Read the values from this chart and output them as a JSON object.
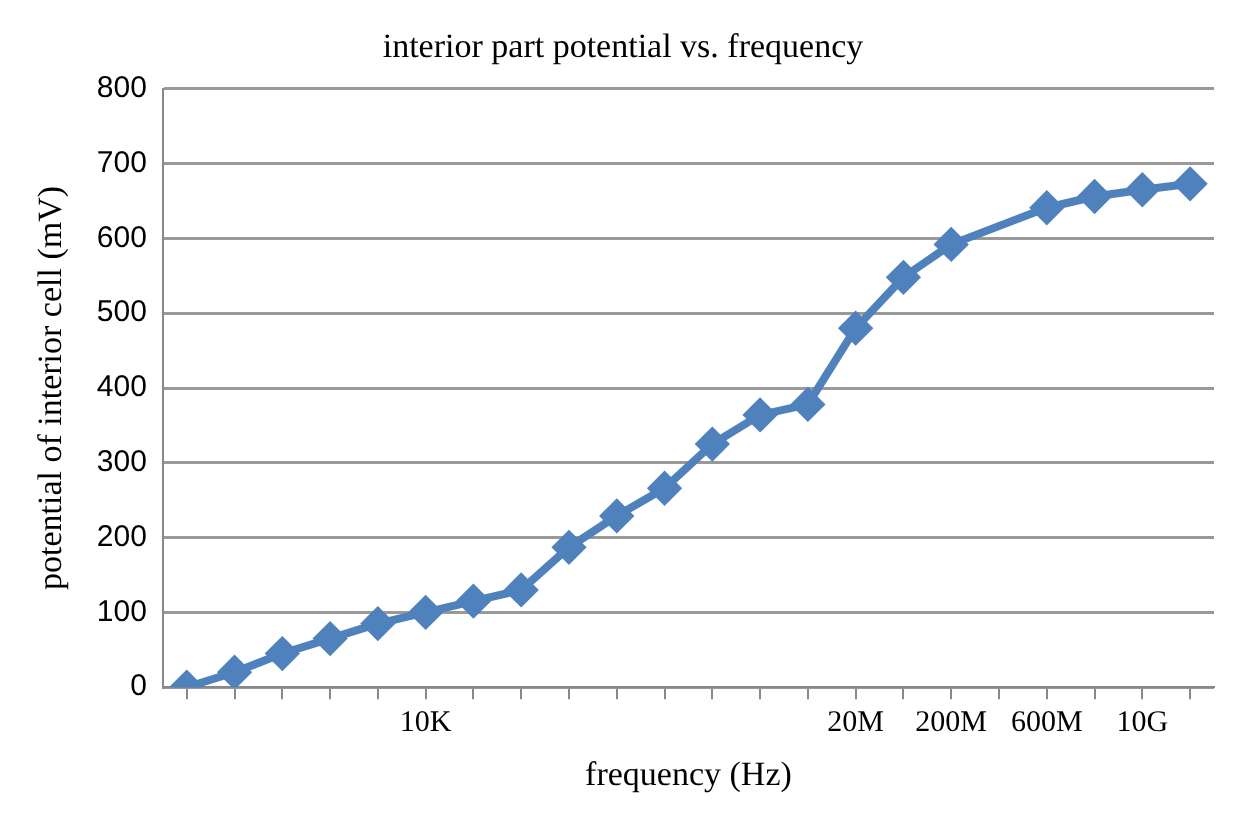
{
  "chart_data": {
    "type": "line",
    "title": "interior part potential vs. frequency",
    "xlabel": "frequency (Hz)",
    "ylabel": "potential of interior cell (mV)",
    "categories": [
      null,
      null,
      null,
      null,
      null,
      "10K",
      null,
      null,
      null,
      null,
      null,
      null,
      null,
      null,
      "20M",
      null,
      "200M",
      null,
      "600M",
      null,
      "10G",
      null
    ],
    "ylim": [
      0,
      800
    ],
    "yticks": [
      0,
      100,
      200,
      300,
      400,
      500,
      600,
      700,
      800
    ],
    "grid": "y",
    "legend": false,
    "marker": "diamond",
    "line_style": "solid",
    "series": [
      {
        "color": "#4f81bd",
        "values": [
          0,
          20,
          45,
          65,
          85,
          100,
          115,
          130,
          187,
          229,
          266,
          325,
          364,
          378,
          480,
          548,
          592,
          null,
          641,
          656,
          665,
          673
        ]
      }
    ]
  }
}
